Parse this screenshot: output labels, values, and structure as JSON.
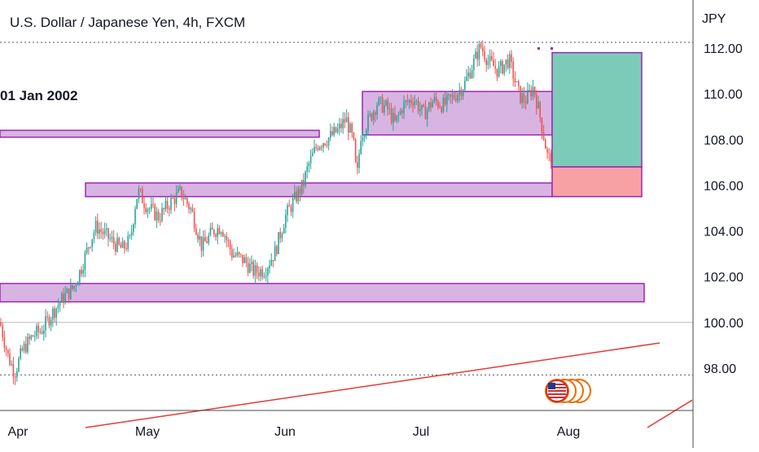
{
  "title": "U.S. Dollar / Japanese Yen, 4h, FXCM",
  "date_label": "01 Jan 2002",
  "chart_data": {
    "type": "candlestick",
    "title": "U.S. Dollar / Japanese Yen, 4h, FXCM",
    "currency": "JPY",
    "x_ticks": [
      "Apr",
      "May",
      "Jun",
      "Jul",
      "Aug"
    ],
    "y_ticks": [
      "112.00",
      "110.00",
      "108.00",
      "106.00",
      "104.00",
      "102.00",
      "100.00",
      "98.00"
    ],
    "ylim": [
      96.0,
      114.0
    ],
    "path": [
      [
        0,
        100.0
      ],
      [
        10,
        98.5
      ],
      [
        18,
        97.8
      ],
      [
        28,
        98.8
      ],
      [
        40,
        99.4
      ],
      [
        52,
        99.7
      ],
      [
        64,
        100.4
      ],
      [
        78,
        101.1
      ],
      [
        90,
        101.5
      ],
      [
        100,
        102.4
      ],
      [
        110,
        103.5
      ],
      [
        118,
        104.2
      ],
      [
        130,
        103.8
      ],
      [
        142,
        103.4
      ],
      [
        150,
        103.2
      ],
      [
        160,
        103.6
      ],
      [
        167,
        105.4
      ],
      [
        170,
        105.7
      ],
      [
        180,
        105.1
      ],
      [
        195,
        104.6
      ],
      [
        208,
        105.2
      ],
      [
        222,
        105.7
      ],
      [
        235,
        104.9
      ],
      [
        248,
        103.3
      ],
      [
        262,
        104.0
      ],
      [
        272,
        104.2
      ],
      [
        285,
        103.0
      ],
      [
        300,
        102.7
      ],
      [
        312,
        102.2
      ],
      [
        325,
        102.3
      ],
      [
        338,
        103.1
      ],
      [
        350,
        104.6
      ],
      [
        362,
        105.4
      ],
      [
        372,
        106.0
      ],
      [
        378,
        106.8
      ],
      [
        390,
        107.8
      ],
      [
        405,
        108.1
      ],
      [
        415,
        108.4
      ],
      [
        425,
        108.9
      ],
      [
        434,
        107.9
      ],
      [
        438,
        106.2
      ],
      [
        443,
        108.2
      ],
      [
        455,
        109.0
      ],
      [
        463,
        109.6
      ],
      [
        475,
        109.4
      ],
      [
        485,
        108.7
      ],
      [
        495,
        109.5
      ],
      [
        508,
        109.8
      ],
      [
        520,
        109.1
      ],
      [
        532,
        109.7
      ],
      [
        545,
        109.5
      ],
      [
        558,
        109.9
      ],
      [
        570,
        110.4
      ],
      [
        582,
        111.4
      ],
      [
        590,
        112.1
      ],
      [
        600,
        111.4
      ],
      [
        612,
        111.0
      ],
      [
        625,
        111.5
      ],
      [
        632,
        110.6
      ],
      [
        638,
        109.9
      ],
      [
        645,
        109.7
      ],
      [
        655,
        110.3
      ],
      [
        662,
        109.2
      ],
      [
        668,
        108.1
      ],
      [
        673,
        107.1
      ],
      [
        678,
        107.4
      ]
    ],
    "ohlc_sample_count": 110,
    "zones": [
      {
        "name": "zone-top-right",
        "x_start": 445,
        "x_end": 678,
        "y_low": 108.2,
        "y_high": 110.1
      },
      {
        "name": "zone-left-upper",
        "x_start": 0,
        "x_end": 392,
        "y_low": 108.1,
        "y_high": 108.4
      },
      {
        "name": "zone-mid",
        "x_start": 105,
        "x_end": 678,
        "y_low": 105.5,
        "y_high": 106.1
      },
      {
        "name": "zone-lower",
        "x_start": 0,
        "x_end": 791,
        "y_low": 100.9,
        "y_high": 101.7
      }
    ],
    "position": {
      "entry": 106.8,
      "target": 111.8,
      "stop": 105.5,
      "x_start": 678,
      "x_end": 788
    },
    "trendlines": [
      {
        "x1": 105,
        "y1": 95.4,
        "x2": 810,
        "y2": 99.1
      },
      {
        "x1": 795,
        "y1": 95.4,
        "x2": 850,
        "y2": 96.6
      }
    ],
    "h_lines": [
      {
        "value": 112.25,
        "style": "dotted"
      },
      {
        "value": 100.0,
        "style": "solid"
      },
      {
        "value": 97.7,
        "style": "dotted"
      }
    ],
    "colors": {
      "up": "#26a69a",
      "down": "#ef5350",
      "zone_fill": "#d8b4e2",
      "zone_border": "#9c27b0",
      "profit": "#7ccbb9",
      "loss": "#f7a1a5",
      "trendline": "#e53935",
      "grid_text": "#131722",
      "axis": "#4a4a4a"
    },
    "legend_flags": 4,
    "grid": false
  }
}
